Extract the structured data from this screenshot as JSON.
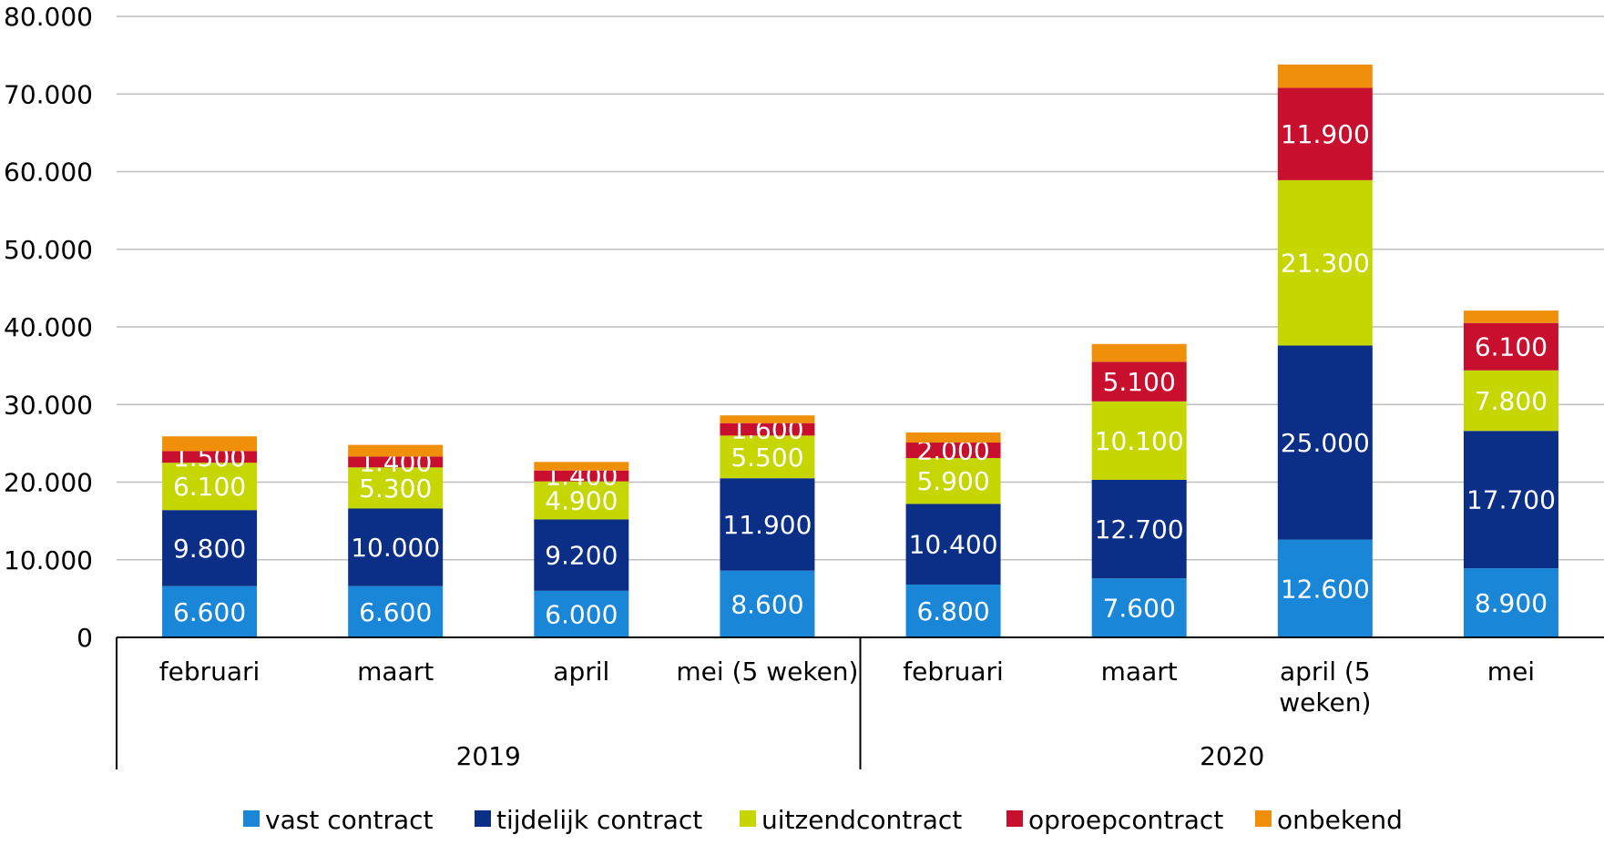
{
  "chart_data": {
    "type": "bar",
    "stacked": true,
    "title": "",
    "xlabel": "",
    "ylabel": "",
    "ylim": [
      0,
      80000
    ],
    "y_ticks": [
      "0",
      "10.000",
      "20.000",
      "30.000",
      "40.000",
      "50.000",
      "60.000",
      "70.000",
      "80.000"
    ],
    "grid": true,
    "legend_position": "bottom",
    "categories": [
      {
        "label": "februari",
        "lines": [
          "februari"
        ]
      },
      {
        "label": "maart",
        "lines": [
          "maart"
        ]
      },
      {
        "label": "april",
        "lines": [
          "april"
        ]
      },
      {
        "label": "mei (5 weken)",
        "lines": [
          "mei (5 weken)"
        ]
      },
      {
        "label": "februari",
        "lines": [
          "februari"
        ]
      },
      {
        "label": "maart",
        "lines": [
          "maart"
        ]
      },
      {
        "label": "april (5 weken)",
        "lines": [
          "april (5",
          "weken)"
        ]
      },
      {
        "label": "mei",
        "lines": [
          "mei"
        ]
      }
    ],
    "groups": [
      {
        "label": "2019",
        "span": 4
      },
      {
        "label": "2020",
        "span": 4
      }
    ],
    "series": [
      {
        "name": "vast contract",
        "color": "#1a86d8",
        "values": [
          6600,
          6600,
          6000,
          8600,
          6800,
          7600,
          12600,
          8900
        ],
        "labels": [
          "6.600",
          "6.600",
          "6.000",
          "8.600",
          "6.800",
          "7.600",
          "12.600",
          "8.900"
        ]
      },
      {
        "name": "tijdelijk contract",
        "color": "#0b2f87",
        "values": [
          9800,
          10000,
          9200,
          11900,
          10400,
          12700,
          25000,
          17700
        ],
        "labels": [
          "9.800",
          "10.000",
          "9.200",
          "11.900",
          "10.400",
          "12.700",
          "25.000",
          "17.700"
        ]
      },
      {
        "name": "uitzendcontract",
        "color": "#c5d600",
        "values": [
          6100,
          5300,
          4900,
          5500,
          5900,
          10100,
          21300,
          7800
        ],
        "labels": [
          "6.100",
          "5.300",
          "4.900",
          "5.500",
          "5.900",
          "10.100",
          "21.300",
          "7.800"
        ]
      },
      {
        "name": "oproepcontract",
        "color": "#c8102e",
        "values": [
          1500,
          1400,
          1400,
          1600,
          2000,
          5100,
          11900,
          6100
        ],
        "labels": [
          "1.500",
          "1.400",
          "1.400",
          "1.600",
          "2.000",
          "5.100",
          "11.900",
          "6.100"
        ]
      },
      {
        "name": "onbekend",
        "color": "#f0900a",
        "values": [
          1900,
          1500,
          1100,
          1000,
          1300,
          2300,
          3000,
          1600
        ],
        "labels": [
          "",
          "",
          "",
          "",
          "",
          "",
          "",
          ""
        ]
      }
    ]
  }
}
